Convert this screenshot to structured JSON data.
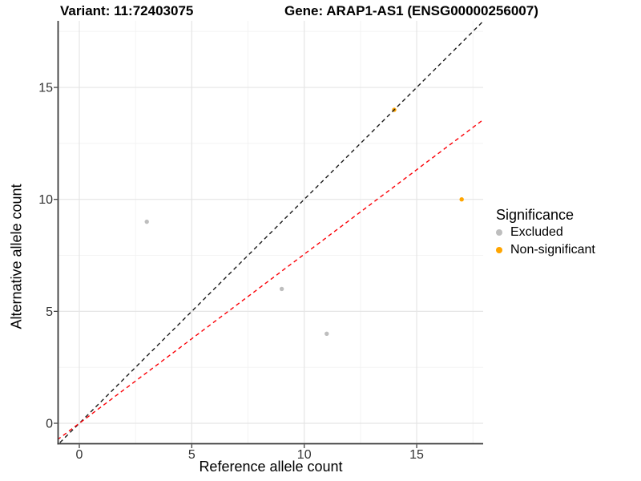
{
  "titles": {
    "variant": "Variant: 11:72403075",
    "gene": "Gene: ARAP1-AS1 (ENSG00000256007)"
  },
  "axes": {
    "x_label": "Reference allele count",
    "y_label": "Alternative allele count"
  },
  "legend": {
    "title": "Significance",
    "items": [
      {
        "label": "Excluded",
        "color": "#bebebe"
      },
      {
        "label": "Non-significant",
        "color": "#ffa500"
      }
    ]
  },
  "chart_data": {
    "type": "scatter",
    "title": "Variant: 11:72403075 | Gene: ARAP1-AS1 (ENSG00000256007)",
    "xlabel": "Reference allele count",
    "ylabel": "Alternative allele count",
    "xlim": [
      -0.9,
      18
    ],
    "ylim": [
      -0.9,
      18
    ],
    "x_ticks": [
      0,
      5,
      10,
      15
    ],
    "y_ticks": [
      0,
      5,
      10,
      15
    ],
    "x_minor_ticks": [
      2.5,
      7.5,
      12.5,
      17.5
    ],
    "y_minor_ticks": [
      2.5,
      7.5,
      12.5,
      17.5
    ],
    "grid": true,
    "legend_title": "Significance",
    "legend_position": "right",
    "series": [
      {
        "name": "Excluded",
        "color": "#bebebe",
        "points": [
          [
            3,
            9
          ],
          [
            9,
            6
          ],
          [
            11,
            4
          ]
        ]
      },
      {
        "name": "Non-significant",
        "color": "#ffa500",
        "points": [
          [
            14,
            14
          ],
          [
            17,
            10
          ]
        ]
      }
    ],
    "lines": [
      {
        "name": "identity-line",
        "slope": 1,
        "intercept": 0,
        "color": "#1a1a1a",
        "style": "dashed"
      },
      {
        "name": "expected-ratio-line",
        "slope": 0.755,
        "intercept": 0,
        "color": "#fb0007",
        "style": "dashed"
      }
    ]
  },
  "colors": {
    "grid_major": "#e5e5e5",
    "grid_minor": "#f2f2f2",
    "axis_line": "#3a3a3a",
    "tick_mark": "#333333",
    "tick_label": "#323232"
  }
}
